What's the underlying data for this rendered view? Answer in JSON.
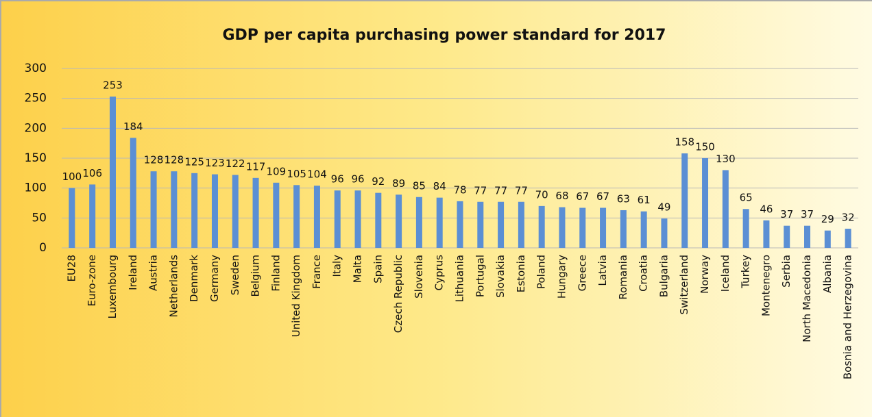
{
  "chart_data": {
    "type": "bar",
    "title": "GDP per capita purchasing power standard for 2017",
    "categories": [
      "EU28",
      "Euro-zone",
      "Luxembourg",
      "Ireland",
      "Austria",
      "Netherlands",
      "Denmark",
      "Germany",
      "Sweden",
      "Belgium",
      "Finland",
      "United Kingdom",
      "France",
      "Italy",
      "Malta",
      "Spain",
      "Czech Republic",
      "Slovenia",
      "Cyprus",
      "Lithuania",
      "Portugal",
      "Slovakia",
      "Estonia",
      "Poland",
      "Hungary",
      "Greece",
      "Latvia",
      "Romania",
      "Croatia",
      "Bulgaria",
      "Switzerland",
      "Norway",
      "Iceland",
      "Turkey",
      "Montenegro",
      "Serbia",
      "North Macedonia",
      "Albania",
      "Bosnia and Herzegovina"
    ],
    "values": [
      100,
      106,
      253,
      184,
      128,
      128,
      125,
      123,
      122,
      117,
      109,
      105,
      104,
      96,
      96,
      92,
      89,
      85,
      84,
      78,
      77,
      77,
      77,
      70,
      68,
      67,
      67,
      63,
      61,
      49,
      158,
      150,
      130,
      65,
      46,
      37,
      37,
      29,
      32
    ],
    "color": "#5b8fd4",
    "ylim": [
      0,
      300
    ],
    "yticks": [
      0,
      50,
      100,
      150,
      200,
      250,
      300
    ],
    "grid": true
  }
}
